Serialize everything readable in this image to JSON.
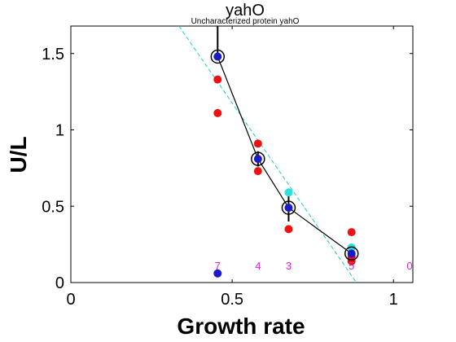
{
  "chart_data": {
    "type": "scatter",
    "title": "yahO",
    "subtitle": "Uncharacterized protein yahO",
    "xlabel": "Growth rate",
    "ylabel": "U/L",
    "xlim": [
      0,
      1.06
    ],
    "ylim": [
      0,
      1.68
    ],
    "xticks": [
      0,
      0.5,
      1
    ],
    "xtick_labels": [
      "0",
      "0.5",
      "1"
    ],
    "yticks": [
      0,
      0.5,
      1,
      1.5
    ],
    "ytick_labels": [
      "0",
      "0.5",
      "1",
      "1.5"
    ],
    "grid": false,
    "legend": "none",
    "colors": {
      "replicate": "#ee1111",
      "fit_point": "#2ee0e0",
      "mean": "#1a1acc",
      "line": "#000000",
      "fit_line": "#22cccc",
      "count": "#dd22dd"
    },
    "replicates": [
      {
        "x": 0.455,
        "y": 1.33
      },
      {
        "x": 0.455,
        "y": 1.11
      },
      {
        "x": 0.58,
        "y": 0.91
      },
      {
        "x": 0.58,
        "y": 0.73
      },
      {
        "x": 0.675,
        "y": 0.35
      },
      {
        "x": 0.87,
        "y": 0.33
      },
      {
        "x": 0.87,
        "y": 0.14
      },
      {
        "x": 0.87,
        "y": 0.17
      }
    ],
    "fit_points": [
      {
        "x": 0.675,
        "y": 0.59
      },
      {
        "x": 0.87,
        "y": 0.23
      }
    ],
    "means": [
      {
        "x": 0.455,
        "y": 1.48,
        "err_low": 1.48,
        "err_high": 1.68
      },
      {
        "x": 0.58,
        "y": 0.81,
        "err_low": 0.76,
        "err_high": 0.86
      },
      {
        "x": 0.675,
        "y": 0.49,
        "err_low": 0.4,
        "err_high": 0.59
      },
      {
        "x": 0.87,
        "y": 0.19,
        "err_low": 0.17,
        "err_high": 0.21
      }
    ],
    "extra_point": {
      "x": 0.455,
      "y": 0.06
    },
    "fit_line": {
      "x1": 0.335,
      "y1": 1.68,
      "x2": 0.885,
      "y2": 0.0
    },
    "counts": [
      {
        "x": 0.455,
        "label": "7"
      },
      {
        "x": 0.58,
        "label": "4"
      },
      {
        "x": 0.675,
        "label": "3"
      },
      {
        "x": 0.87,
        "label": "5"
      },
      {
        "x": 1.05,
        "label": "0"
      }
    ]
  }
}
